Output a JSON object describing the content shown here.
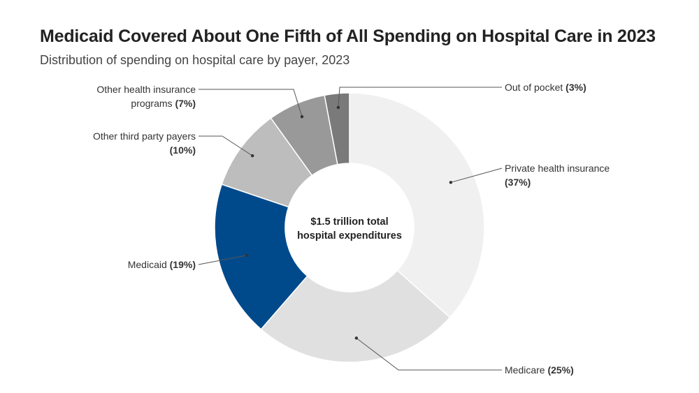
{
  "header": {
    "title": "Medicaid Covered About One Fifth of All Spending on Hospital Care in 2023",
    "subtitle": "Distribution of spending on hospital care by payer, 2023"
  },
  "center_label": [
    "$1.5 trillion total",
    "hospital expenditures"
  ],
  "chart_data": {
    "type": "pie",
    "variant": "donut",
    "title": "Medicaid Covered About One Fifth of All Spending on Hospital Care in 2023",
    "subtitle": "Distribution of spending on hospital care by payer, 2023",
    "unit": "percent",
    "slices": [
      {
        "name": "Private health insurance",
        "value": 37,
        "color": "#f0f0f0",
        "label_lines": [
          "Private health insurance",
          "(37%)"
        ]
      },
      {
        "name": "Medicare",
        "value": 25,
        "color": "#e0e0e0",
        "label_lines": [
          "Medicare (25%)"
        ]
      },
      {
        "name": "Medicaid",
        "value": 19,
        "color": "#004a8c",
        "label_lines": [
          "Medicaid (19%)"
        ]
      },
      {
        "name": "Other third party payers",
        "value": 10,
        "color": "#bdbdbd",
        "label_lines": [
          "Other third party payers",
          "(10%)"
        ]
      },
      {
        "name": "Other health insurance programs",
        "value": 7,
        "color": "#999999",
        "label_lines": [
          "Other health insurance",
          "programs (7%)"
        ]
      },
      {
        "name": "Out of pocket",
        "value": 3,
        "color": "#7a7a7a",
        "label_lines": [
          "Out of pocket (3%)"
        ]
      }
    ]
  }
}
